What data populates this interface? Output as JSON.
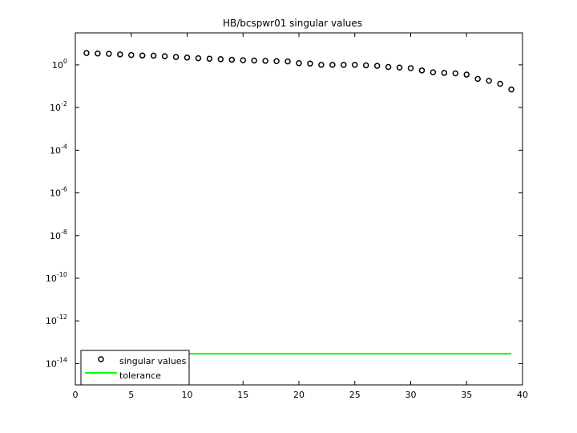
{
  "chart_data": {
    "type": "scatter",
    "title": "HB/bcspwr01 singular values",
    "xlabel": "",
    "ylabel": "",
    "xlim": [
      0,
      40
    ],
    "ylim_log10": [
      -15,
      1.5
    ],
    "yscale": "log",
    "grid": false,
    "legend_placement": "bottom-left",
    "x_ticks": [
      "0",
      "5",
      "10",
      "15",
      "20",
      "25",
      "30",
      "35",
      "40"
    ],
    "y_ticks": [
      {
        "base": "10",
        "exp": "0"
      },
      {
        "base": "10",
        "exp": "-2"
      },
      {
        "base": "10",
        "exp": "-4"
      },
      {
        "base": "10",
        "exp": "-6"
      },
      {
        "base": "10",
        "exp": "-8"
      },
      {
        "base": "10",
        "exp": "-10"
      },
      {
        "base": "10",
        "exp": "-12"
      },
      {
        "base": "10",
        "exp": "-14"
      }
    ],
    "series": [
      {
        "name": "singular values",
        "marker": "circle",
        "color": "#000000",
        "x": [
          1,
          2,
          3,
          4,
          5,
          6,
          7,
          8,
          9,
          10,
          11,
          12,
          13,
          14,
          15,
          16,
          17,
          18,
          19,
          20,
          21,
          22,
          23,
          24,
          25,
          26,
          27,
          28,
          29,
          30,
          31,
          32,
          33,
          34,
          35,
          36,
          37,
          38,
          39
        ],
        "y": [
          3.6,
          3.4,
          3.3,
          3.1,
          2.9,
          2.75,
          2.7,
          2.55,
          2.35,
          2.2,
          2.05,
          1.95,
          1.85,
          1.75,
          1.65,
          1.6,
          1.55,
          1.5,
          1.45,
          1.2,
          1.15,
          1.0,
          1.0,
          1.0,
          1.0,
          0.95,
          0.9,
          0.8,
          0.75,
          0.7,
          0.55,
          0.45,
          0.42,
          0.4,
          0.35,
          0.22,
          0.18,
          0.13,
          0.07
        ]
      },
      {
        "name": "tolerance",
        "marker": "line",
        "color": "#00ff00",
        "x": [
          1,
          39
        ],
        "y": [
          2.9e-14,
          2.9e-14
        ]
      }
    ]
  }
}
